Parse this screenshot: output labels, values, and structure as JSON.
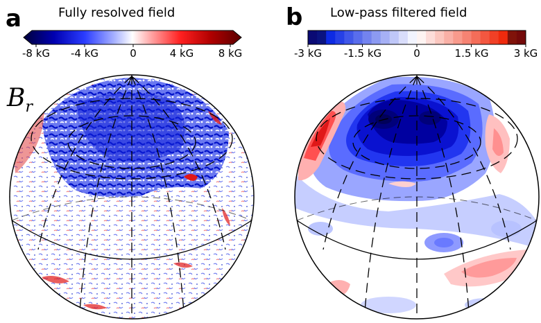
{
  "panels": {
    "a": {
      "letter": "a",
      "title": "Fully resolved field",
      "ticks": [
        "-8 kG",
        "-4 kG",
        "0",
        "4 kG",
        "8 kG"
      ],
      "colorbar": [
        "#00003a",
        "#0000b0",
        "#2a3cff",
        "#9aa8ff",
        "#ffffff",
        "#ff9a9a",
        "#ff2020",
        "#b00000",
        "#5a0000"
      ]
    },
    "b": {
      "letter": "b",
      "title": "Low-pass filtered field",
      "ticks": [
        "-3 kG",
        "-1.5 kG",
        "0",
        "1.5 kG",
        "3 kG"
      ],
      "colorbar": [
        "#00003a",
        "#0000b0",
        "#2a3cff",
        "#9aa8ff",
        "#ffffff",
        "#ff9a9a",
        "#ff2020",
        "#b00000",
        "#5a0000"
      ]
    }
  },
  "variable": {
    "symbol": "B",
    "subscript": "r"
  },
  "colors": {
    "negative": "#0a1ee0",
    "positive": "#e01818",
    "grid": "#000000"
  }
}
